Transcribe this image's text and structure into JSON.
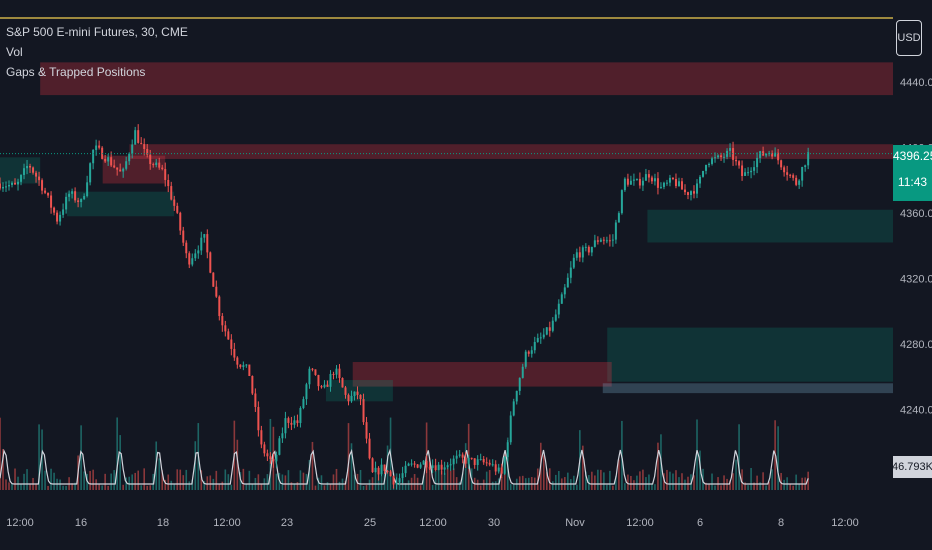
{
  "legend": {
    "symbol": "S&P 500 E-mini Futures, 30, CME",
    "vol": "Vol",
    "indicator": "Gaps & Trapped Positions"
  },
  "currency": "USD",
  "last_price": "4396.25",
  "countdown": "11:43",
  "volume_value": "46.793K",
  "colors": {
    "background": "#131722",
    "up": "#26a69a",
    "down": "#ef5350",
    "gap_bear": "#f23645",
    "gap_bull": "#089981",
    "last_price": "#089981"
  },
  "chart_data": {
    "type": "candlestick",
    "title": "S&P 500 E-mini Futures, 30, CME",
    "price_axis": {
      "ticks": [
        "4440.00",
        "4400.00",
        "4360.00",
        "4320.00",
        "4280.00",
        "4240.00"
      ],
      "range": [
        4200,
        4460
      ]
    },
    "time_axis": {
      "ticks": [
        "12:00",
        "16",
        "18",
        "12:00",
        "23",
        "25",
        "12:00",
        "30",
        "Nov",
        "12:00",
        "6",
        "8",
        "12:00"
      ]
    },
    "price_path": [
      [
        0,
        4378
      ],
      [
        0.02,
        4376
      ],
      [
        0.035,
        4390
      ],
      [
        0.05,
        4378
      ],
      [
        0.07,
        4356
      ],
      [
        0.085,
        4372
      ],
      [
        0.1,
        4366
      ],
      [
        0.115,
        4400
      ],
      [
        0.13,
        4394
      ],
      [
        0.15,
        4383
      ],
      [
        0.165,
        4410
      ],
      [
        0.18,
        4393
      ],
      [
        0.2,
        4385
      ],
      [
        0.215,
        4362
      ],
      [
        0.23,
        4330
      ],
      [
        0.25,
        4345
      ],
      [
        0.27,
        4296
      ],
      [
        0.29,
        4270
      ],
      [
        0.305,
        4263
      ],
      [
        0.32,
        4217
      ],
      [
        0.335,
        4206
      ],
      [
        0.35,
        4234
      ],
      [
        0.365,
        4232
      ],
      [
        0.38,
        4265
      ],
      [
        0.395,
        4250
      ],
      [
        0.41,
        4265
      ],
      [
        0.425,
        4246
      ],
      [
        0.44,
        4250
      ],
      [
        0.455,
        4200
      ],
      [
        0.47,
        4205
      ],
      [
        0.485,
        4195
      ],
      [
        0.5,
        4205
      ],
      [
        0.52,
        4208
      ],
      [
        0.54,
        4205
      ],
      [
        0.56,
        4210
      ],
      [
        0.58,
        4208
      ],
      [
        0.6,
        4207
      ],
      [
        0.615,
        4200
      ],
      [
        0.63,
        4248
      ],
      [
        0.645,
        4275
      ],
      [
        0.66,
        4282
      ],
      [
        0.675,
        4290
      ],
      [
        0.69,
        4310
      ],
      [
        0.705,
        4335
      ],
      [
        0.72,
        4337
      ],
      [
        0.735,
        4345
      ],
      [
        0.75,
        4342
      ],
      [
        0.765,
        4380
      ],
      [
        0.78,
        4378
      ],
      [
        0.795,
        4384
      ],
      [
        0.81,
        4375
      ],
      [
        0.825,
        4380
      ],
      [
        0.84,
        4372
      ],
      [
        0.855,
        4376
      ],
      [
        0.865,
        4392
      ],
      [
        0.88,
        4393
      ],
      [
        0.895,
        4397
      ],
      [
        0.91,
        4382
      ],
      [
        0.93,
        4395
      ],
      [
        0.945,
        4398
      ],
      [
        0.96,
        4388
      ],
      [
        0.975,
        4378
      ],
      [
        0.99,
        4396
      ]
    ],
    "gap_zones": [
      {
        "kind": "bear",
        "from": 0.045,
        "to": 1,
        "top": 4452,
        "bottom": 4432
      },
      {
        "kind": "bear",
        "from": 0.145,
        "to": 1,
        "top": 4402,
        "bottom": 4393
      },
      {
        "kind": "bear",
        "from": 0.115,
        "to": 0.185,
        "top": 4395,
        "bottom": 4378
      },
      {
        "kind": "bull",
        "from": 0.075,
        "to": 0.195,
        "top": 4373,
        "bottom": 4358
      },
      {
        "kind": "bull",
        "from": 0.0,
        "to": 0.045,
        "top": 4394,
        "bottom": 4378
      },
      {
        "kind": "bull",
        "from": 0.725,
        "to": 1,
        "top": 4362,
        "bottom": 4342
      },
      {
        "kind": "bull",
        "from": 0.68,
        "to": 1,
        "top": 4290,
        "bottom": 4257
      },
      {
        "kind": "bear",
        "from": 0.395,
        "to": 0.685,
        "top": 4269,
        "bottom": 4254
      },
      {
        "kind": "bull",
        "from": 0.365,
        "to": 0.44,
        "top": 4258,
        "bottom": 4245
      },
      {
        "kind": "neutral",
        "from": 0.675,
        "to": 1,
        "top": 4256,
        "bottom": 4250
      }
    ],
    "volume_ma": {
      "cycles": 21,
      "baseline": 46.8
    }
  }
}
